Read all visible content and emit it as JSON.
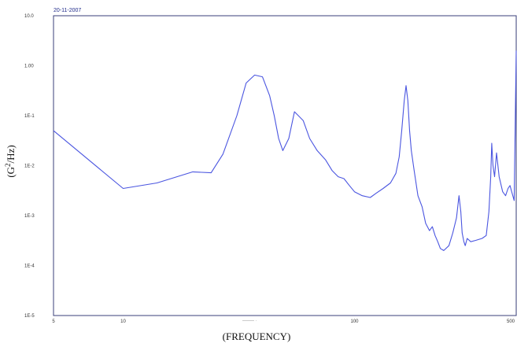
{
  "chart_data": {
    "type": "line",
    "date_label": "20-11-2007",
    "xlabel": "(FREQUENCY)",
    "ylabel_main": "(G",
    "ylabel_sup": "2",
    "ylabel_tail": "/Hz)",
    "x_scale": "log",
    "y_scale": "log",
    "xlim": [
      5,
      500
    ],
    "ylim": [
      1e-05,
      10
    ],
    "grid": false,
    "line_color": "#4a55e0",
    "frame_color": "#3a3f7a",
    "y_ticks": [
      {
        "value": 10,
        "label": "10.0"
      },
      {
        "value": 1,
        "label": "1.00"
      },
      {
        "value": 0.1,
        "label": "1E-1"
      },
      {
        "value": 0.01,
        "label": "1E-2"
      },
      {
        "value": 0.001,
        "label": "1E-3"
      },
      {
        "value": 0.0001,
        "label": "1E-4"
      },
      {
        "value": 1e-05,
        "label": "1E-5"
      }
    ],
    "x_ticks": [
      {
        "value": 5,
        "label": "5"
      },
      {
        "value": 10,
        "label": "10"
      },
      {
        "value": 100,
        "label": "100"
      },
      {
        "value": 500,
        "label": "500"
      }
    ],
    "series": [
      {
        "x": [
          5,
          10,
          14,
          20,
          24,
          27,
          31,
          34,
          37,
          40,
          43,
          45,
          47,
          49,
          52,
          55,
          60,
          64,
          69,
          75,
          80,
          85,
          90,
          95,
          100,
          108,
          117,
          124,
          133,
          143,
          151,
          156,
          160,
          164,
          167,
          170,
          173,
          176,
          181,
          188,
          196,
          203,
          211,
          217,
          223,
          229,
          235,
          243,
          256,
          266,
          276,
          283,
          288,
          292,
          297,
          301,
          307,
          318,
          335,
          356,
          371,
          381,
          388,
          392,
          397,
          403,
          411,
          422,
          437,
          450,
          461,
          470,
          480,
          490,
          500
        ],
        "y": [
          0.05,
          0.0035,
          0.0045,
          0.0075,
          0.0072,
          0.017,
          0.1,
          0.45,
          0.65,
          0.6,
          0.25,
          0.1,
          0.035,
          0.02,
          0.035,
          0.12,
          0.08,
          0.035,
          0.02,
          0.013,
          0.008,
          0.006,
          0.0055,
          0.004,
          0.003,
          0.0025,
          0.0023,
          0.0028,
          0.0035,
          0.0045,
          0.007,
          0.015,
          0.05,
          0.2,
          0.4,
          0.2,
          0.05,
          0.02,
          0.008,
          0.0025,
          0.0015,
          0.0007,
          0.0005,
          0.0006,
          0.0004,
          0.0003,
          0.00022,
          0.0002,
          0.00025,
          0.00045,
          0.0009,
          0.0025,
          0.0012,
          0.00045,
          0.0003,
          0.00025,
          0.00035,
          0.0003,
          0.00032,
          0.00035,
          0.0004,
          0.0012,
          0.006,
          0.028,
          0.01,
          0.006,
          0.018,
          0.006,
          0.003,
          0.0025,
          0.0035,
          0.004,
          0.0028,
          0.002,
          2
        ]
      }
    ]
  }
}
